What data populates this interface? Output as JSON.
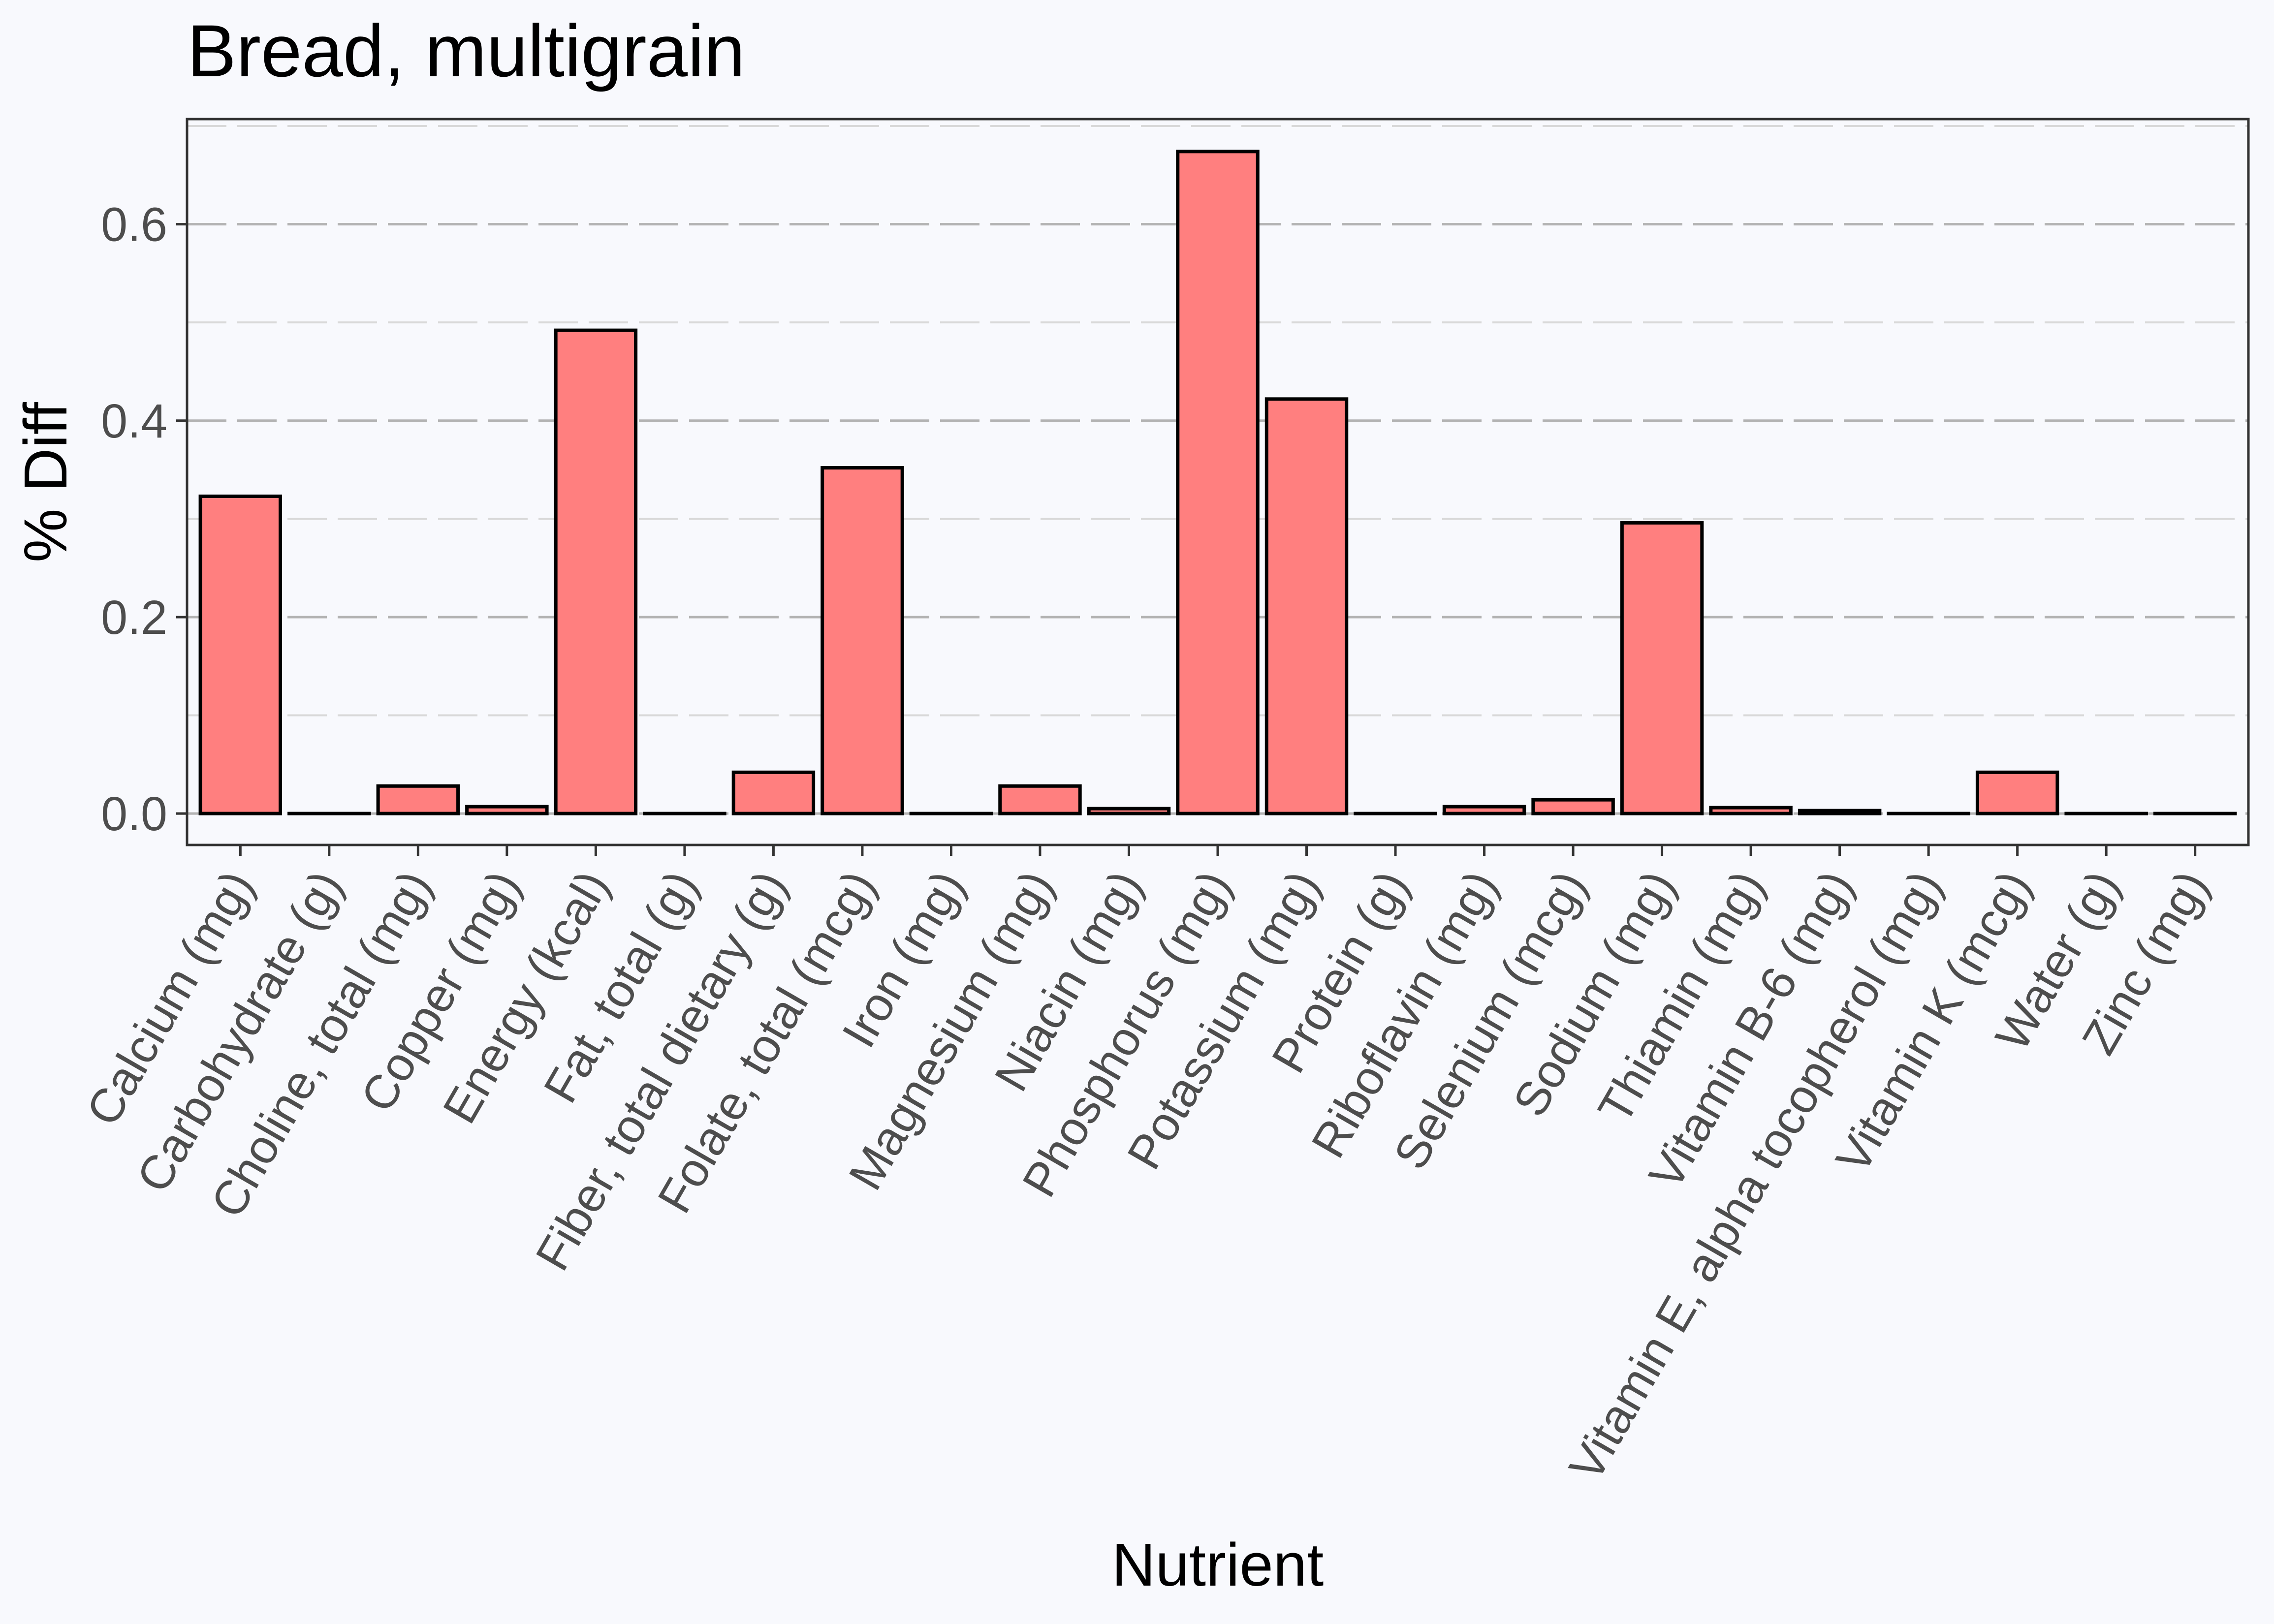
{
  "chart_data": {
    "type": "bar",
    "title": "Bread, multigrain",
    "xlabel": "Nutrient",
    "ylabel": "% Diff",
    "categories": [
      "Calcium (mg)",
      "Carbohydrate (g)",
      "Choline, total (mg)",
      "Copper (mg)",
      "Energy (kcal)",
      "Fat, total (g)",
      "Fiber, total dietary (g)",
      "Folate, total (mcg)",
      "Iron (mg)",
      "Magnesium (mg)",
      "Niacin (mg)",
      "Phosphorus (mg)",
      "Potassium (mg)",
      "Protein (g)",
      "Riboflavin (mg)",
      "Selenium (mcg)",
      "Sodium (mg)",
      "Thiamin (mg)",
      "Vitamin B-6 (mg)",
      "Vitamin E, alpha tocopherol (mg)",
      "Vitamin K (mcg)",
      "Water (g)",
      "Zinc (mg)"
    ],
    "values": [
      0.323,
      0.0,
      0.028,
      0.007,
      0.492,
      0.0,
      0.042,
      0.352,
      0.0,
      0.028,
      0.005,
      0.674,
      0.422,
      0.0,
      0.007,
      0.014,
      0.296,
      0.006,
      0.003,
      0.0,
      0.042,
      0.0,
      0.0
    ],
    "ylim": [
      -0.032,
      0.707
    ],
    "yticks": [
      0.0,
      0.2,
      0.4,
      0.6
    ],
    "ytick_labels": [
      "0.0",
      "0.2",
      "0.4",
      "0.6"
    ],
    "grid": true,
    "bar_fill": "#ff7f7f",
    "bar_stroke": "#000000",
    "panel_background": "#f8f9fd",
    "grid_color": "#b3b3b3"
  }
}
